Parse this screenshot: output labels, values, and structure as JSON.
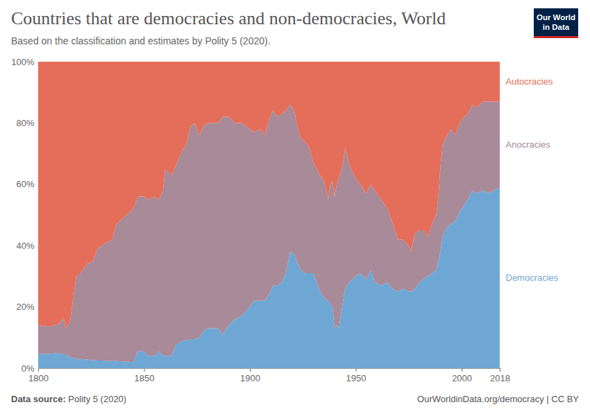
{
  "chart_data": {
    "type": "area",
    "stacked": true,
    "title": "Countries that are democracies and non-democracies, World",
    "subtitle": "Based on the classification and estimates by Polity 5 (2020).",
    "source_label": "Data source:",
    "source": "Polity 5 (2020)",
    "credit": "OurWorldinData.org/democracy | CC BY",
    "logo": [
      "Our World",
      "in Data"
    ],
    "xlim": [
      1800,
      2018
    ],
    "xticks": [
      1800,
      1850,
      1900,
      1950,
      2000,
      2018
    ],
    "ylim": [
      0,
      100
    ],
    "yticks": [
      {
        "value": 0,
        "label": "0%"
      },
      {
        "value": 20,
        "label": "20%"
      },
      {
        "value": 40,
        "label": "40%"
      },
      {
        "value": 60,
        "label": "60%"
      },
      {
        "value": 80,
        "label": "80%"
      },
      {
        "value": 100,
        "label": "100%"
      }
    ],
    "x": [
      1800,
      1805,
      1810,
      1812,
      1813,
      1815,
      1817,
      1818,
      1820,
      1823,
      1826,
      1828,
      1830,
      1835,
      1837,
      1840,
      1845,
      1847,
      1850,
      1852,
      1855,
      1857,
      1859,
      1860,
      1863,
      1865,
      1868,
      1870,
      1872,
      1874,
      1876,
      1878,
      1880,
      1885,
      1887,
      1890,
      1893,
      1896,
      1900,
      1902,
      1905,
      1907,
      1909,
      1911,
      1913,
      1915,
      1917,
      1919,
      1921,
      1922,
      1924,
      1926,
      1928,
      1930,
      1933,
      1935,
      1937,
      1938,
      1939,
      1940,
      1941,
      1942,
      1944,
      1945,
      1947,
      1950,
      1952,
      1955,
      1957,
      1959,
      1962,
      1965,
      1967,
      1970,
      1972,
      1975,
      1976,
      1978,
      1980,
      1982,
      1984,
      1986,
      1988,
      1989,
      1990,
      1991,
      1993,
      1995,
      1997,
      1999,
      2001,
      2003,
      2005,
      2007,
      2010,
      2013,
      2015,
      2018
    ],
    "series": [
      {
        "name": "Democracies",
        "color": "#6fa7d4",
        "values": [
          4.5,
          4.7,
          5,
          4.5,
          4.5,
          3.5,
          3.2,
          3,
          3,
          2.8,
          2.6,
          2.5,
          2.5,
          2.3,
          2.3,
          2.2,
          2,
          5.5,
          5.5,
          4,
          4,
          5.5,
          4,
          4,
          4,
          7.5,
          9,
          9,
          9.5,
          9.5,
          10,
          12,
          13,
          13,
          11,
          14,
          16,
          17,
          20,
          22,
          22,
          22,
          24,
          27,
          27,
          28,
          31,
          38,
          37,
          35,
          32,
          31,
          31,
          31,
          25,
          23,
          22,
          21,
          20,
          13,
          14,
          13,
          22,
          26,
          28,
          30,
          31,
          29,
          32,
          28,
          27,
          28,
          26,
          25,
          26,
          25,
          25,
          26,
          28,
          29,
          30,
          31,
          32,
          35,
          38,
          43,
          46,
          47,
          48,
          51,
          53,
          55,
          58,
          57,
          58,
          57,
          58,
          59
        ]
      },
      {
        "name": "Anocracies",
        "color": "#a88a99",
        "values": [
          9.5,
          8.8,
          9.5,
          12,
          8.5,
          11.5,
          21.8,
          27,
          28,
          31.2,
          32.4,
          36.5,
          37.5,
          39.7,
          44.7,
          46.8,
          50,
          50.5,
          50.5,
          51,
          52,
          49.5,
          54,
          61,
          59,
          58.5,
          62,
          64,
          69.5,
          70.5,
          66,
          67,
          67,
          67,
          71,
          68,
          64,
          63,
          58,
          55,
          56,
          54,
          57,
          57,
          55,
          55,
          53,
          48,
          47,
          45,
          43,
          43,
          41,
          36,
          38,
          38,
          33,
          39,
          41,
          43,
          46,
          49,
          45,
          46,
          38,
          32,
          29,
          28,
          28,
          30,
          28,
          24,
          22,
          17,
          16,
          15,
          13,
          18,
          17,
          16,
          13,
          16,
          18,
          21,
          28,
          30,
          30,
          31,
          28,
          29,
          29,
          28,
          28,
          28,
          29,
          30,
          29,
          28
        ]
      },
      {
        "name": "Autocracies",
        "color": "#e56e5a",
        "values": [
          86,
          86.5,
          85.5,
          83.5,
          87,
          85,
          75,
          70,
          69,
          66,
          65,
          61,
          60,
          58,
          53,
          51,
          48,
          44,
          44,
          45,
          44,
          45,
          42,
          35,
          37,
          34,
          29,
          27,
          21,
          20,
          24,
          21,
          20,
          20,
          18,
          18,
          20,
          20,
          22,
          23,
          22,
          24,
          19,
          16,
          18,
          17,
          16,
          14,
          16,
          20,
          25,
          26,
          28,
          33,
          37,
          39,
          45,
          40,
          39,
          44,
          40,
          38,
          33,
          28,
          34,
          38,
          40,
          43,
          40,
          42,
          45,
          48,
          52,
          58,
          58,
          60,
          62,
          56,
          55,
          55,
          57,
          53,
          50,
          44,
          34,
          27,
          24,
          22,
          24,
          20,
          18,
          17,
          14,
          15,
          13,
          13,
          13,
          13
        ]
      }
    ]
  }
}
